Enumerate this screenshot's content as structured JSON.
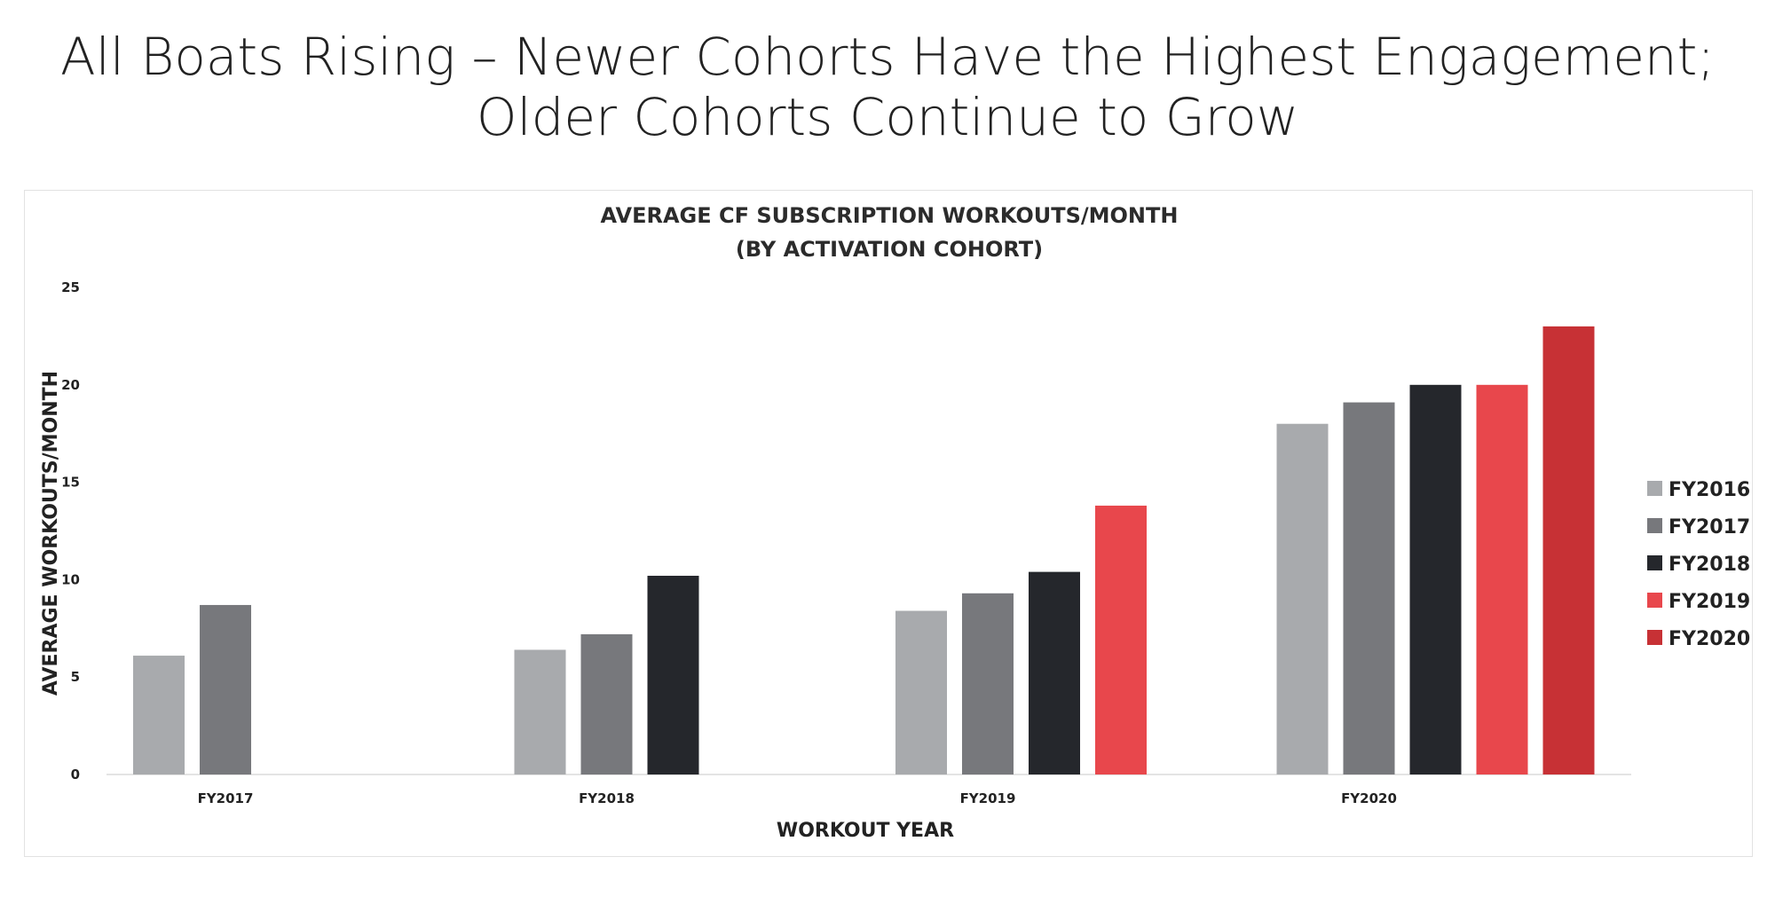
{
  "headline": {
    "line1": "All Boats Rising – Newer Cohorts Have the Highest Engagement;",
    "line2": "Older Cohorts Continue to Grow"
  },
  "chart_data": {
    "type": "bar",
    "title": "AVERAGE CF SUBSCRIPTION WORKOUTS/MONTH",
    "subtitle": "(BY ACTIVATION COHORT)",
    "xlabel": "WORKOUT YEAR",
    "ylabel": "AVERAGE WORKOUTS/MONTH",
    "ylim": [
      0,
      25
    ],
    "yticks": [
      0,
      5,
      10,
      15,
      20,
      25
    ],
    "grid": false,
    "legend_position": "right",
    "categories": [
      "FY2017",
      "FY2018",
      "FY2019",
      "FY2020"
    ],
    "series": [
      {
        "name": "FY2016",
        "color": "#a8aaad",
        "values": [
          6.1,
          6.4,
          8.4,
          18.0
        ]
      },
      {
        "name": "FY2017",
        "color": "#77787c",
        "values": [
          8.7,
          7.2,
          9.3,
          19.1
        ]
      },
      {
        "name": "FY2018",
        "color": "#25272c",
        "values": [
          null,
          10.2,
          10.4,
          20.0
        ]
      },
      {
        "name": "FY2019",
        "color": "#e8474c",
        "values": [
          null,
          null,
          13.8,
          20.0
        ]
      },
      {
        "name": "FY2020",
        "color": "#c73135",
        "values": [
          null,
          null,
          null,
          23.0
        ]
      }
    ]
  }
}
